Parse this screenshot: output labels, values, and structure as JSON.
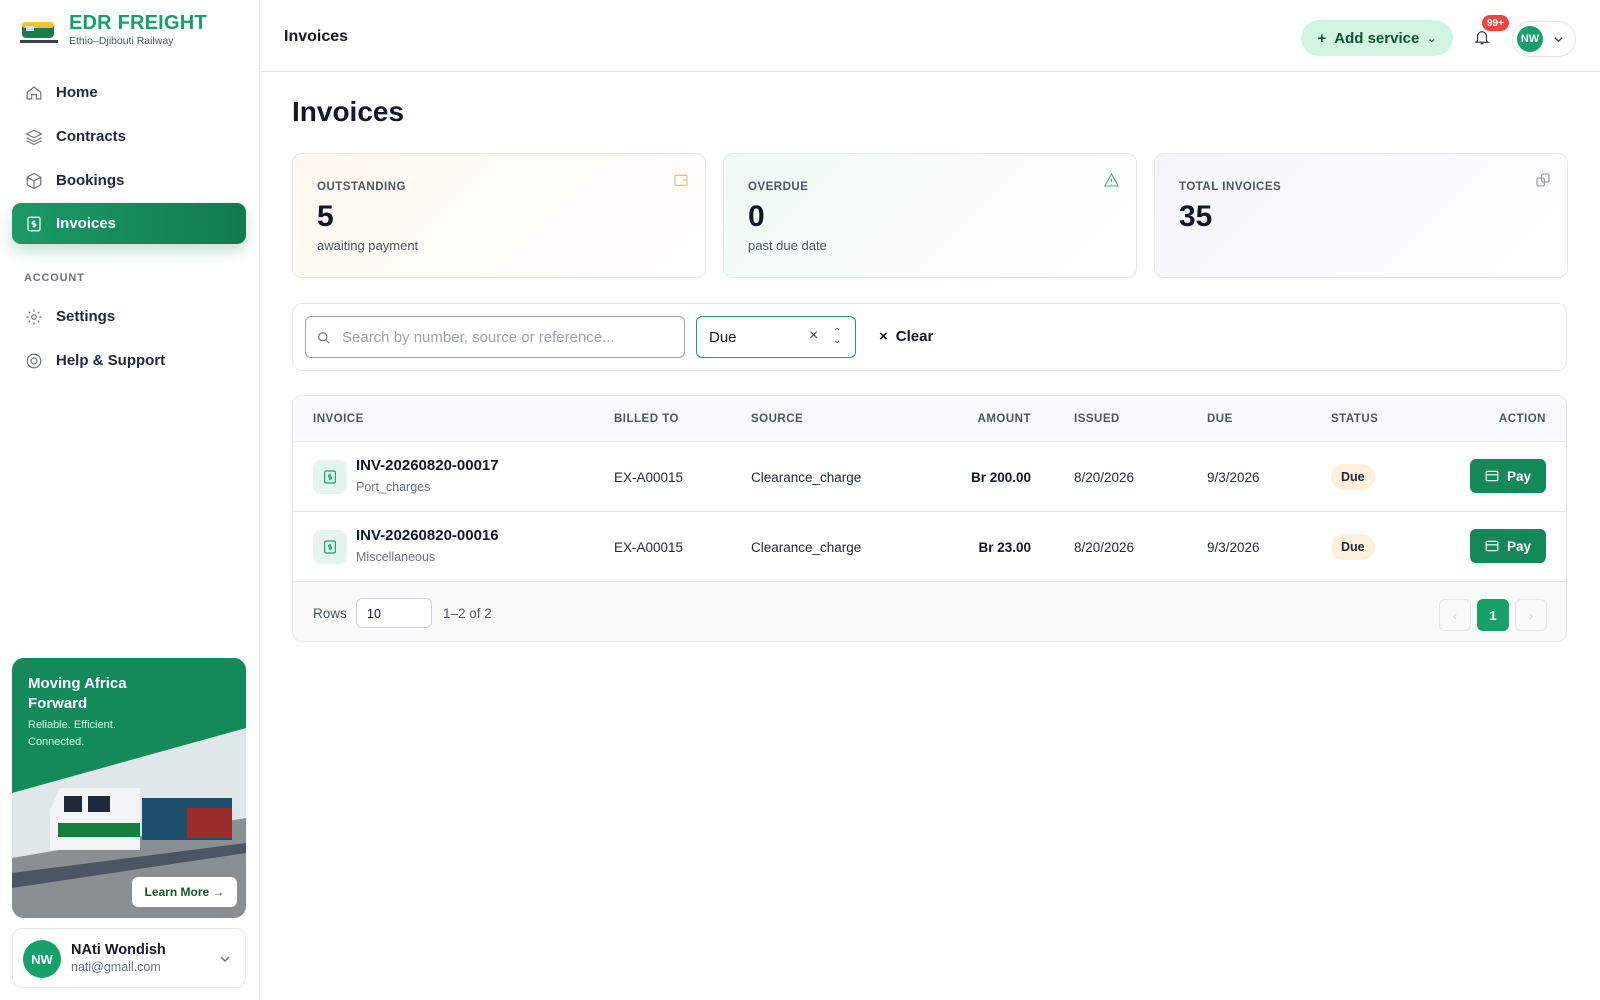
{
  "brand": {
    "name": "EDR FREIGHT",
    "subtitle": "Ethio–Djibouti Railway"
  },
  "nav": {
    "items": [
      "Home",
      "Contracts",
      "Bookings",
      "Invoices"
    ],
    "active": 3,
    "section": "ACCOUNT",
    "account_items": [
      "Settings",
      "Help & Support"
    ]
  },
  "promo": {
    "title": "Moving Africa Forward",
    "text": "Reliable. Efficient. Connected.",
    "button": "Learn More →"
  },
  "user": {
    "initials": "NW",
    "name": "NAti Wondish",
    "email": "nati@gmail.com"
  },
  "header": {
    "title": "Invoices",
    "add_service": "Add service",
    "notifications": "99+",
    "avatar": "NW"
  },
  "page_title": "Invoices",
  "stats": [
    {
      "label": "OUTSTANDING",
      "value": 5,
      "caption": "awaiting payment"
    },
    {
      "label": "OVERDUE",
      "value": 0,
      "caption": "past due date"
    },
    {
      "label": "TOTAL INVOICES",
      "value": 35
    }
  ],
  "filters": {
    "search_placeholder": "Search by number, source or reference...",
    "status": "Due",
    "clear": "Clear"
  },
  "table": {
    "columns": [
      "INVOICE",
      "BILLED TO",
      "SOURCE",
      "AMOUNT",
      "ISSUED",
      "DUE",
      "STATUS",
      "ACTION"
    ],
    "rows": [
      {
        "invoice": "INV-20260820-00017",
        "type": "Port_charges",
        "billed_to": "EX-A00015",
        "source": "Clearance_charge",
        "amount": "Br 200.00",
        "issued": "8/20/2026",
        "due": "9/3/2026",
        "status": "Due",
        "action": "Pay"
      },
      {
        "invoice": "INV-20260820-00016",
        "type": "Miscellaneous",
        "billed_to": "EX-A00015",
        "source": "Clearance_charge",
        "amount": "Br 23.00",
        "issued": "8/20/2026",
        "due": "9/3/2026",
        "status": "Due",
        "action": "Pay"
      }
    ]
  },
  "pagination": {
    "rows_label": "Rows",
    "rows_per_page": 10,
    "range": "1–2 of 2",
    "current_page": 1
  }
}
